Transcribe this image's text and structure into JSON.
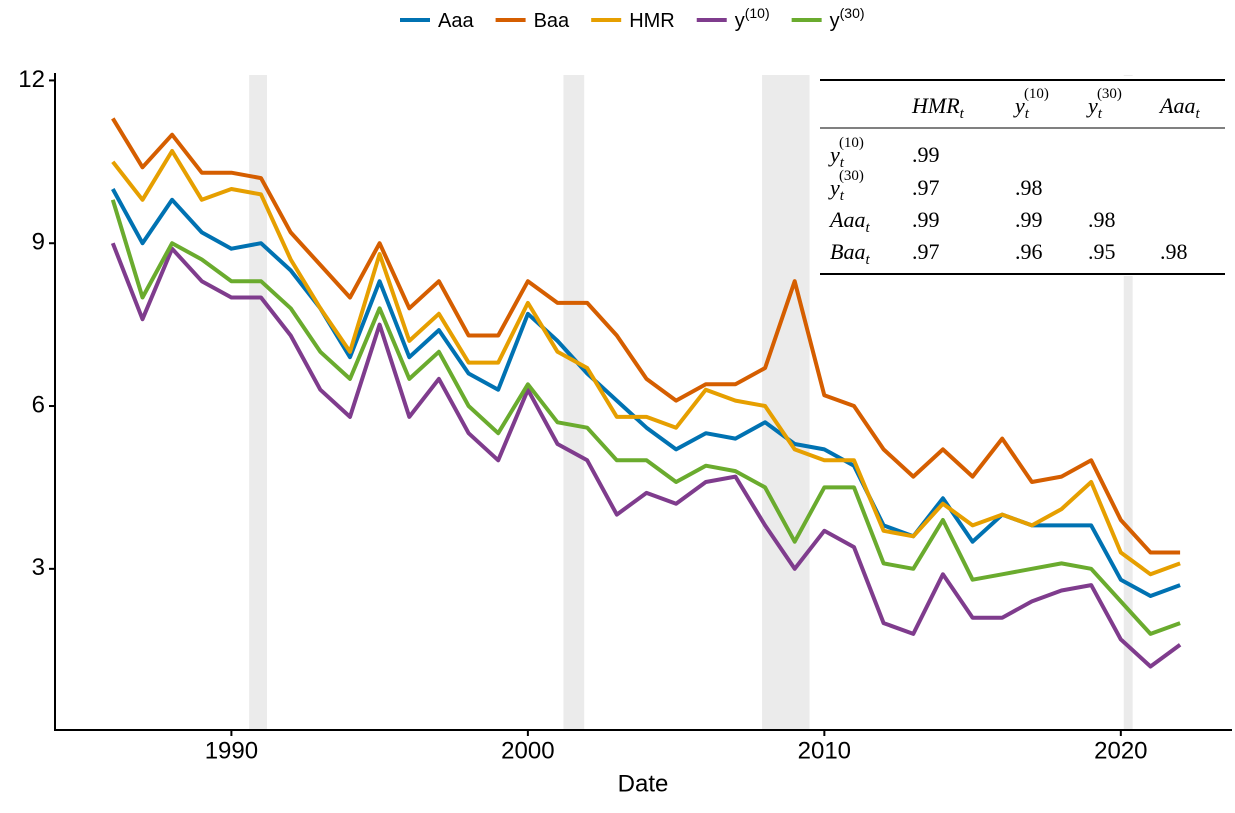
{
  "chart_data": {
    "type": "line",
    "x_label": "Date",
    "xlim": [
      1984.05,
      2023.75
    ],
    "ylim": [
      0.03,
      12.1
    ],
    "xticks": [
      1990,
      2000,
      2010,
      2020
    ],
    "yticks": [
      3,
      6,
      9,
      12
    ],
    "recessions": [
      [
        1990.6,
        1991.2
      ],
      [
        2001.2,
        2001.9
      ],
      [
        2007.9,
        2009.5
      ],
      [
        2020.1,
        2020.4
      ]
    ],
    "legend": "top",
    "x": [
      1986,
      1987,
      1988,
      1989,
      1990,
      1991,
      1992,
      1993,
      1994,
      1995,
      1996,
      1997,
      1998,
      1999,
      2000,
      2001,
      2002,
      2003,
      2004,
      2005,
      2006,
      2007,
      2008,
      2009,
      2010,
      2011,
      2012,
      2013,
      2014,
      2015,
      2016,
      2017,
      2018,
      2019,
      2020,
      2021,
      2022
    ],
    "series": [
      {
        "name": "Aaa",
        "color": "#0072B2",
        "values": [
          10.0,
          9.0,
          9.8,
          9.2,
          8.9,
          9.0,
          8.5,
          7.8,
          6.9,
          8.3,
          6.9,
          7.4,
          6.6,
          6.3,
          7.7,
          7.2,
          6.6,
          6.1,
          5.6,
          5.2,
          5.5,
          5.4,
          5.7,
          5.3,
          5.2,
          4.9,
          3.8,
          3.6,
          4.3,
          3.5,
          4.0,
          3.8,
          3.8,
          3.8,
          2.8,
          2.5,
          2.7
        ]
      },
      {
        "name": "Baa",
        "color": "#D55E00",
        "values": [
          11.3,
          10.4,
          11.0,
          10.3,
          10.3,
          10.2,
          9.2,
          8.6,
          8.0,
          9.0,
          7.8,
          8.3,
          7.3,
          7.3,
          8.3,
          7.9,
          7.9,
          7.3,
          6.5,
          6.1,
          6.4,
          6.4,
          6.7,
          8.3,
          6.2,
          6.0,
          5.2,
          4.7,
          5.2,
          4.7,
          5.4,
          4.6,
          4.7,
          5.0,
          3.9,
          3.3,
          3.3
        ]
      },
      {
        "name": "HMR",
        "color": "#E69F00",
        "values": [
          10.5,
          9.8,
          10.7,
          9.8,
          10.0,
          9.9,
          8.7,
          7.8,
          7.0,
          8.8,
          7.2,
          7.7,
          6.8,
          6.8,
          7.9,
          7.0,
          6.7,
          5.8,
          5.8,
          5.6,
          6.3,
          6.1,
          6.0,
          5.2,
          5.0,
          5.0,
          3.7,
          3.6,
          4.2,
          3.8,
          4.0,
          3.8,
          4.1,
          4.6,
          3.3,
          2.9,
          3.1
        ]
      },
      {
        "name": "y",
        "name_sup": "(10)",
        "color": "#7F3C8D",
        "values": [
          9.0,
          7.6,
          8.9,
          8.3,
          8.0,
          8.0,
          7.3,
          6.3,
          5.8,
          7.5,
          5.8,
          6.5,
          5.5,
          5.0,
          6.3,
          5.3,
          5.0,
          4.0,
          4.4,
          4.2,
          4.6,
          4.7,
          3.8,
          3.0,
          3.7,
          3.4,
          2.0,
          1.8,
          2.9,
          2.1,
          2.1,
          2.4,
          2.6,
          2.7,
          1.7,
          1.2,
          1.6
        ]
      },
      {
        "name": "y",
        "name_sup": "(30)",
        "color": "#6AAB2E",
        "values": [
          9.8,
          8.0,
          9.0,
          8.7,
          8.3,
          8.3,
          7.8,
          7.0,
          6.5,
          7.8,
          6.5,
          7.0,
          6.0,
          5.5,
          6.4,
          5.7,
          5.6,
          5.0,
          5.0,
          4.6,
          4.9,
          4.8,
          4.5,
          3.5,
          4.5,
          4.5,
          3.1,
          3.0,
          3.9,
          2.8,
          2.9,
          3.0,
          3.1,
          3.0,
          2.4,
          1.8,
          2.0
        ]
      }
    ],
    "table": {
      "columns": [
        {
          "text": "HMR",
          "sub": "t"
        },
        {
          "text": "y",
          "sub": "t",
          "sup": "(10)"
        },
        {
          "text": "y",
          "sub": "t",
          "sup": "(30)"
        },
        {
          "text": "Aaa",
          "sub": "t"
        }
      ],
      "rows": [
        {
          "label": {
            "text": "y",
            "sub": "t",
            "sup": "(10)"
          },
          "values": [
            ".99"
          ]
        },
        {
          "label": {
            "text": "y",
            "sub": "t",
            "sup": "(30)"
          },
          "values": [
            ".97",
            ".98"
          ]
        },
        {
          "label": {
            "text": "Aaa",
            "sub": "t"
          },
          "values": [
            ".99",
            ".99",
            ".98"
          ]
        },
        {
          "label": {
            "text": "Baa",
            "sub": "t"
          },
          "values": [
            ".97",
            ".96",
            ".95",
            ".98"
          ]
        }
      ]
    }
  }
}
